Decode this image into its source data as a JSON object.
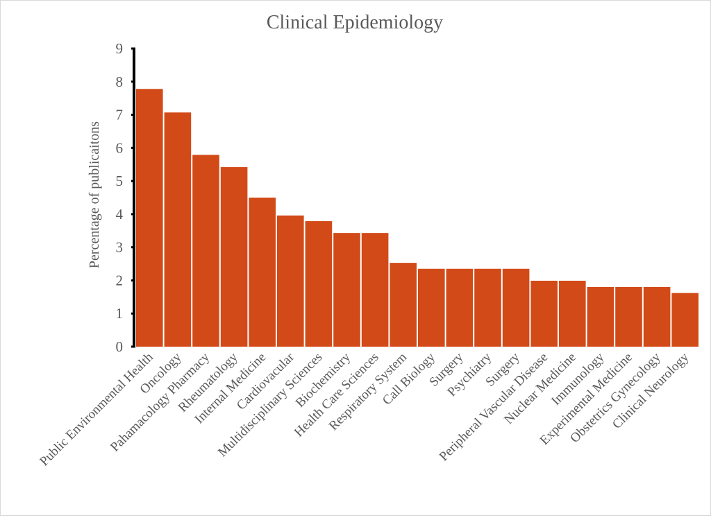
{
  "chart_data": {
    "type": "bar",
    "title": "Clinical Epidemiology",
    "xlabel": "",
    "ylabel": "Percentage of publicaitons",
    "ylim": [
      0,
      9
    ],
    "yticks": [
      "0",
      "1",
      "2",
      "3",
      "4",
      "5",
      "6",
      "7",
      "8",
      "9"
    ],
    "grid": false,
    "legend": "none",
    "bar_color": "#D24A18",
    "categories": [
      "Public Environmental Health",
      "Oncology",
      "Pahamacology Pharmacy",
      "Rheumatology",
      "Internal Medicine",
      "Cardiovacular",
      "Multidisciplinary Sciences",
      "Biochemistry",
      "Health Care Sciences",
      "Respiratory System",
      "Call Biology",
      "Surgery",
      "Psychiatry",
      "Surgery",
      "Peripheral Vascular Disease",
      "Nuclear Medicine",
      "Immunology",
      "Experimental Medicine",
      "Obstetrics Gynecology",
      "Clinical Neurology"
    ],
    "values": [
      7.78,
      7.07,
      5.79,
      5.42,
      4.5,
      3.96,
      3.79,
      3.43,
      3.43,
      2.53,
      2.35,
      2.35,
      2.35,
      2.35,
      1.99,
      1.99,
      1.8,
      1.8,
      1.8,
      1.62
    ]
  }
}
